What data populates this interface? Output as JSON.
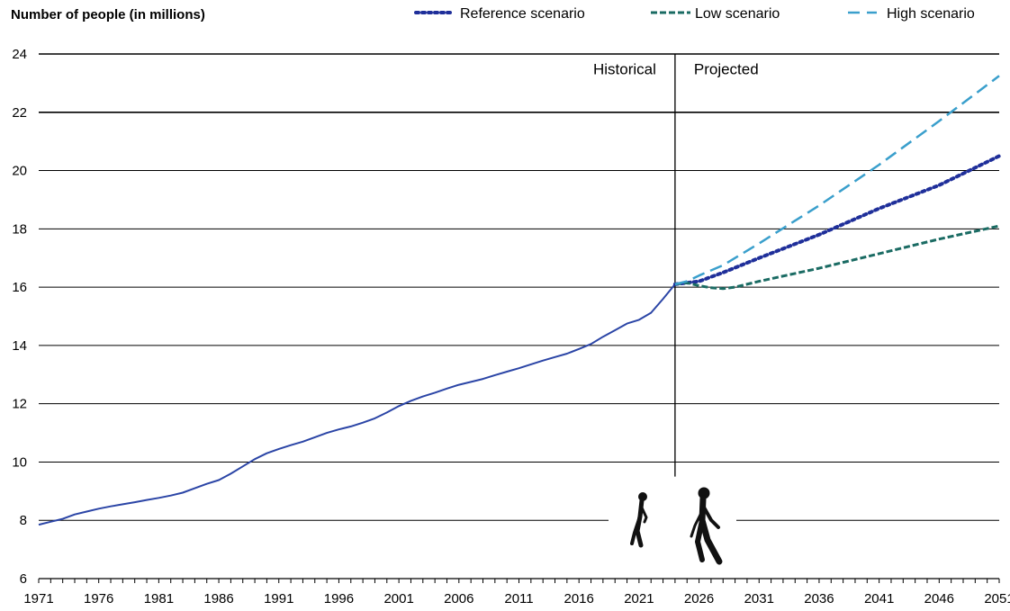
{
  "chart_data": {
    "type": "line",
    "ylabel": "Number of people (in millions)",
    "ylim": [
      6,
      24
    ],
    "yticks": [
      6,
      8,
      10,
      12,
      14,
      16,
      18,
      20,
      22,
      24
    ],
    "xlim": [
      1971,
      2051
    ],
    "xticks": [
      1971,
      1976,
      1981,
      1986,
      1991,
      1996,
      2001,
      2006,
      2011,
      2016,
      2021,
      2026,
      2031,
      2036,
      2041,
      2046,
      2051
    ],
    "grid": "horizontal",
    "legend_position": "top",
    "divider_year": 2024,
    "annotations": {
      "historical": "Historical",
      "projected": "Projected"
    },
    "series": [
      {
        "name": "Historical",
        "style": "solid",
        "color": "#2b45a6",
        "x": [
          1971,
          1972,
          1973,
          1974,
          1975,
          1976,
          1977,
          1978,
          1979,
          1980,
          1981,
          1982,
          1983,
          1984,
          1985,
          1986,
          1987,
          1988,
          1989,
          1990,
          1991,
          1992,
          1993,
          1994,
          1995,
          1996,
          1997,
          1998,
          1999,
          2000,
          2001,
          2002,
          2003,
          2004,
          2005,
          2006,
          2007,
          2008,
          2009,
          2010,
          2011,
          2012,
          2013,
          2014,
          2015,
          2016,
          2017,
          2018,
          2019,
          2020,
          2021,
          2022,
          2023,
          2024
        ],
        "y": [
          7.85,
          7.95,
          8.05,
          8.2,
          8.3,
          8.4,
          8.48,
          8.55,
          8.62,
          8.7,
          8.77,
          8.85,
          8.95,
          9.1,
          9.25,
          9.38,
          9.6,
          9.85,
          10.1,
          10.3,
          10.45,
          10.58,
          10.7,
          10.85,
          11.0,
          11.12,
          11.22,
          11.35,
          11.5,
          11.7,
          11.92,
          12.1,
          12.25,
          12.38,
          12.52,
          12.65,
          12.75,
          12.85,
          12.98,
          13.1,
          13.22,
          13.35,
          13.48,
          13.6,
          13.72,
          13.88,
          14.05,
          14.3,
          14.52,
          14.75,
          14.88,
          15.12,
          15.6,
          16.1
        ]
      },
      {
        "name": "Reference scenario",
        "style": "dotted",
        "color": "#1f2f9a",
        "x": [
          2024,
          2026,
          2028,
          2031,
          2036,
          2041,
          2046,
          2051
        ],
        "y": [
          16.1,
          16.2,
          16.5,
          17.0,
          17.8,
          18.7,
          19.5,
          20.5
        ]
      },
      {
        "name": "Low scenario",
        "style": "dashed",
        "color": "#1a6b63",
        "x": [
          2024,
          2025,
          2026,
          2027,
          2028,
          2029,
          2031,
          2036,
          2041,
          2046,
          2051
        ],
        "y": [
          16.1,
          16.15,
          16.05,
          15.98,
          15.95,
          16.0,
          16.2,
          16.65,
          17.15,
          17.65,
          18.1
        ]
      },
      {
        "name": "High scenario",
        "style": "longdash",
        "color": "#3a9fcc",
        "x": [
          2024,
          2025,
          2026,
          2028,
          2031,
          2036,
          2041,
          2046,
          2051
        ],
        "y": [
          16.1,
          16.2,
          16.4,
          16.75,
          17.5,
          18.8,
          20.2,
          21.7,
          23.25
        ]
      }
    ],
    "legend": [
      {
        "label": "Reference scenario",
        "style": "dotted",
        "color": "#1f2f9a"
      },
      {
        "label": "Low scenario",
        "style": "dashed",
        "color": "#1a6b63"
      },
      {
        "label": "High scenario",
        "style": "longdash",
        "color": "#3a9fcc"
      }
    ],
    "icons": [
      "walking-person-icon",
      "walking-person-with-cane-icon"
    ]
  }
}
